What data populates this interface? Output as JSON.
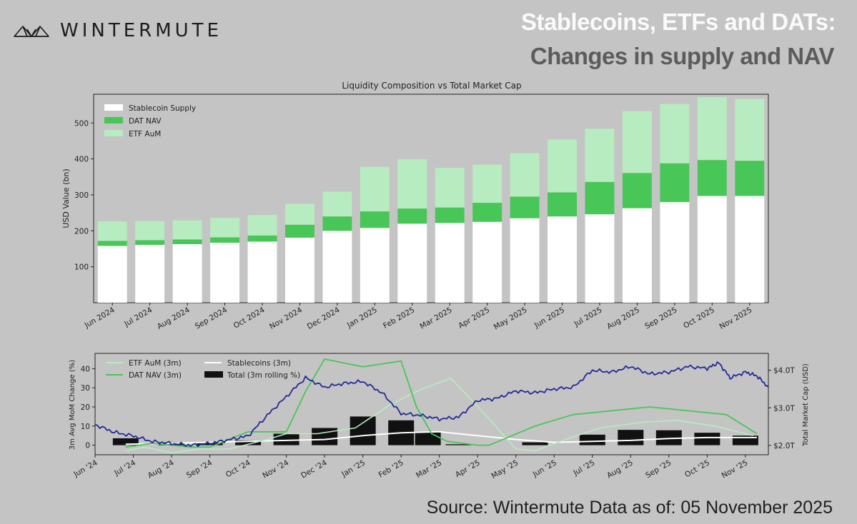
{
  "header": {
    "brand": "WINTERMUTE",
    "title_line1": "Stablecoins, ETFs and DATs:",
    "title_line2": "Changes in supply and NAV",
    "source": "Source: Wintermute  Data as of: 05 November 2025"
  },
  "colors": {
    "stable": "#ffffff",
    "dat": "#48c657",
    "etf": "#b7ecc0",
    "price": "#232a96",
    "total": "#111111"
  },
  "chart_data": [
    {
      "type": "bar",
      "stacked": true,
      "title": "Liquidity Composition vs Total Market Cap",
      "ylabel": "USD Value (bn)",
      "ylim": [
        0,
        580
      ],
      "yticks": [
        "100",
        "200",
        "300",
        "400",
        "500"
      ],
      "legend_position": "top-left",
      "categories": [
        "Jun 2024",
        "Jul 2024",
        "Aug 2024",
        "Sep 2024",
        "Oct 2024",
        "Nov 2024",
        "Dec 2024",
        "Jan 2025",
        "Feb 2025",
        "Mar 2025",
        "Apr 2025",
        "May 2025",
        "Jun 2025",
        "Jul 2025",
        "Aug 2025",
        "Sep 2025",
        "Oct 2025",
        "Nov 2025"
      ],
      "series": [
        {
          "name": "Stablecoin Supply",
          "values": [
            158,
            161,
            163,
            167,
            170,
            181,
            200,
            208,
            220,
            222,
            225,
            235,
            240,
            246,
            263,
            280,
            297,
            297
          ]
        },
        {
          "name": "DAT NAV",
          "values": [
            14,
            13,
            13,
            15,
            17,
            36,
            40,
            46,
            42,
            43,
            53,
            60,
            67,
            90,
            98,
            108,
            100,
            98
          ]
        },
        {
          "name": "ETF AuM",
          "values": [
            54,
            53,
            53,
            54,
            57,
            58,
            69,
            124,
            137,
            110,
            106,
            121,
            147,
            148,
            172,
            165,
            175,
            172
          ]
        }
      ]
    },
    {
      "type": "line",
      "ylabel": "3m Avg MoM Change (%)",
      "y2label": "Total Market Cap (USD)",
      "ylim": [
        -5,
        48
      ],
      "yticks": [
        "0",
        "10",
        "20",
        "30",
        "40"
      ],
      "y2lim": [
        1.75,
        4.45
      ],
      "y2ticks": [
        "$2.0T",
        "$3.0T",
        "$4.0T"
      ],
      "xlim": [
        0,
        17.6
      ],
      "xticks": [
        "Jun '24",
        "Jul '24",
        "Aug '24",
        "Sep '24",
        "Oct '24",
        "Nov '24",
        "Dec '24",
        "Jan '25",
        "Feb '25",
        "Mar '25",
        "Apr '25",
        "May '25",
        "Jun '25",
        "Jul '25",
        "Aug '25",
        "Sep '25",
        "Oct '25",
        "Nov '25"
      ],
      "legend_position": "top-left",
      "series": [
        {
          "name": "ETF AuM (3m)",
          "x": [
            0.8,
            1.3,
            2.0,
            2.7,
            3.5,
            4.5,
            5.0,
            5.8,
            6.8,
            7.7,
            8.5,
            9.3,
            10.2,
            11.0,
            11.5,
            12.3,
            13.2,
            14.3,
            15.2,
            16.2,
            17.2
          ],
          "values": [
            -3,
            -1,
            -4,
            -2,
            -2,
            3,
            6,
            6,
            9,
            21,
            29,
            35,
            16,
            -2,
            -3,
            3,
            9,
            12,
            13,
            10,
            5
          ]
        },
        {
          "name": "DAT NAV (3m)",
          "x": [
            0.8,
            1.5,
            2.5,
            3.0,
            4.0,
            5.0,
            5.5,
            6.0,
            7.0,
            8.0,
            8.4,
            8.8,
            9.2,
            10.0,
            10.3,
            11.5,
            12.5,
            13.5,
            14.5,
            15.5,
            16.5,
            17.3
          ],
          "values": [
            -1,
            1,
            -1,
            -1,
            7,
            7,
            28,
            45,
            41,
            44,
            20,
            6,
            2,
            0,
            0,
            10,
            16,
            18,
            20,
            18,
            16,
            6
          ]
        },
        {
          "name": "Stablecoins (3m)",
          "x": [
            0.8,
            2,
            3,
            4,
            5,
            6,
            7,
            8,
            9,
            10,
            11,
            12,
            13,
            14,
            15,
            16,
            17.3
          ],
          "values": [
            0.5,
            1,
            1.5,
            2,
            2.5,
            3,
            5,
            6.5,
            7,
            5,
            3,
            1.5,
            2,
            2.5,
            3.5,
            4,
            4
          ]
        },
        {
          "name": "Total (3m rolling %)",
          "bar_positions": [
            0.8,
            2,
            3,
            4,
            5,
            6,
            7,
            8,
            8.7,
            9.5,
            11.5,
            13,
            14,
            15,
            16,
            17
          ],
          "values": [
            3.6,
            1.5,
            1.5,
            2.5,
            6,
            9,
            15,
            13,
            7,
            0.5,
            1.5,
            5.5,
            8,
            7.8,
            6.5,
            5
          ]
        },
        {
          "name": "Total Market Cap",
          "axis": "right",
          "x": [
            0,
            0.5,
            1,
            1.5,
            2,
            2.5,
            3,
            3.5,
            4,
            4.5,
            5,
            5.5,
            6,
            6.5,
            7,
            7.5,
            8,
            8.5,
            9,
            9.5,
            10,
            10.5,
            11,
            11.5,
            12,
            12.5,
            13,
            13.5,
            14,
            14.5,
            15,
            15.5,
            16,
            16.3,
            16.6,
            17,
            17.3,
            17.6
          ],
          "values": [
            2.55,
            2.35,
            2.25,
            2.1,
            2.05,
            2.0,
            2.05,
            2.15,
            2.25,
            2.8,
            3.3,
            3.8,
            3.55,
            3.65,
            3.7,
            3.4,
            2.85,
            2.8,
            2.7,
            2.75,
            3.2,
            3.25,
            3.45,
            3.4,
            3.5,
            3.55,
            4.0,
            3.95,
            4.1,
            3.9,
            3.95,
            4.1,
            4.05,
            4.2,
            3.8,
            3.95,
            3.85,
            3.55
          ]
        }
      ]
    }
  ]
}
